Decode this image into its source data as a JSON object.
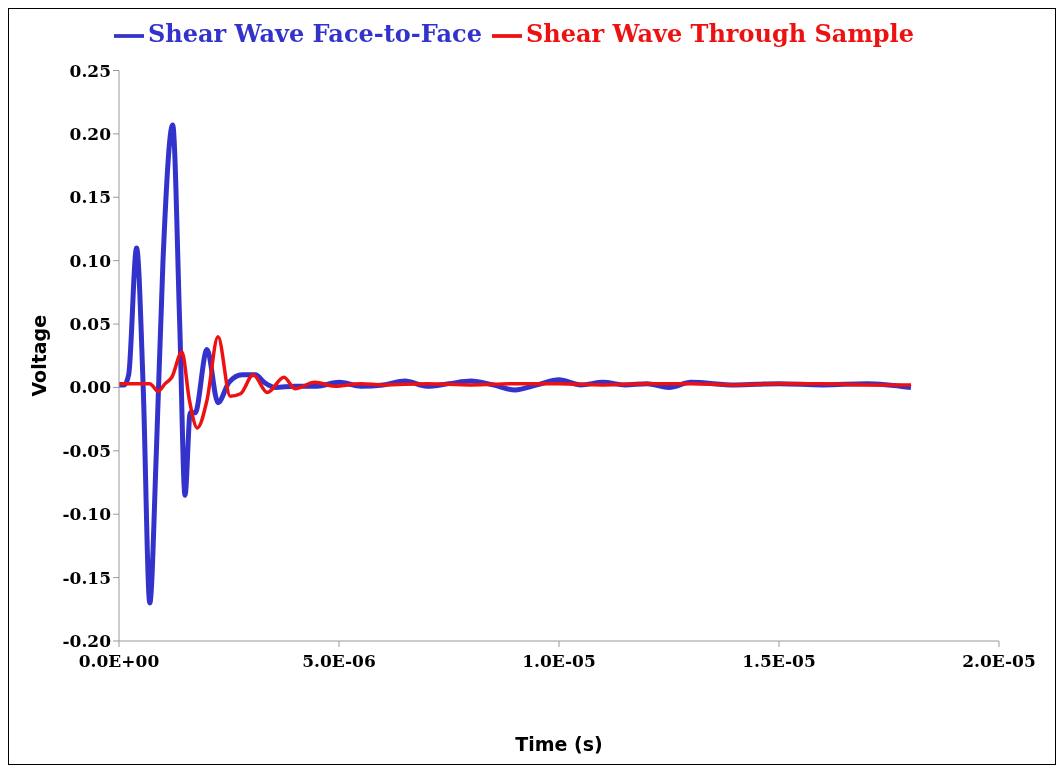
{
  "chart_data": {
    "type": "line",
    "xlabel": "Time (s)",
    "ylabel": "Voltage",
    "xlim": [
      0,
      2e-05
    ],
    "xticks": [
      {
        "value": 0,
        "label": "0.0E+00"
      },
      {
        "value": 5e-06,
        "label": "5.0E-06"
      },
      {
        "value": 1e-05,
        "label": "1.0E-05"
      },
      {
        "value": 1.5e-05,
        "label": "1.5E-05"
      },
      {
        "value": 2e-05,
        "label": "2.0E-05"
      }
    ],
    "ylim": [
      -0.2,
      0.25
    ],
    "yticks": [
      {
        "value": -0.2,
        "label": "-0.20"
      },
      {
        "value": -0.15,
        "label": "-0.15"
      },
      {
        "value": -0.1,
        "label": "-0.10"
      },
      {
        "value": -0.05,
        "label": "-0.05"
      },
      {
        "value": 0,
        "label": "0.00"
      },
      {
        "value": 0.05,
        "label": "0.05"
      },
      {
        "value": 0.1,
        "label": "0.10"
      },
      {
        "value": 0.15,
        "label": "0.15"
      },
      {
        "value": 0.2,
        "label": "0.20"
      },
      {
        "value": 0.25,
        "label": "0.25"
      }
    ],
    "grid": false,
    "legend": "top",
    "marker": "none",
    "line_style": "solid",
    "series": [
      {
        "name": "Shear Wave Face-to-Face",
        "color": "#3333cc",
        "x": [
          0,
          1.2e-07,
          2.2e-07,
          4e-07,
          5.5e-07,
          7e-07,
          8.5e-07,
          1e-06,
          1.22e-06,
          1.38e-06,
          1.5e-06,
          1.62e-06,
          1.73e-06,
          2e-06,
          2.25e-06,
          2.5e-06,
          2.8e-06,
          3.1e-06,
          3.3e-06,
          3.55e-06,
          4e-06,
          4.5e-06,
          5e-06,
          5.5e-06,
          6e-06,
          6.5e-06,
          7e-06,
          7.5e-06,
          8e-06,
          8.5e-06,
          9e-06,
          9.5e-06,
          1e-05,
          1.05e-05,
          1.1e-05,
          1.15e-05,
          1.2e-05,
          1.25e-05,
          1.3e-05,
          1.4e-05,
          1.5e-05,
          1.6e-05,
          1.7e-05,
          1.8e-05
        ],
        "values": [
          0.002,
          0.002,
          0.01,
          0.11,
          0.0,
          -0.17,
          -0.05,
          0.1,
          0.207,
          0.05,
          -0.085,
          -0.02,
          -0.02,
          0.03,
          -0.012,
          0.004,
          0.01,
          0.01,
          0.004,
          0.0,
          0.001,
          0.001,
          0.004,
          0.001,
          0.002,
          0.005,
          0.001,
          0.003,
          0.005,
          0.002,
          -0.002,
          0.002,
          0.006,
          0.002,
          0.004,
          0.002,
          0.003,
          0.0,
          0.004,
          0.002,
          0.003,
          0.002,
          0.003,
          0.0
        ]
      },
      {
        "name": "Shear Wave Through Sample",
        "color": "#ee1111",
        "x": [
          0,
          4e-07,
          7e-07,
          8.9e-07,
          1.05e-06,
          1.2e-06,
          1.43e-06,
          1.6e-06,
          1.78e-06,
          2e-06,
          2.25e-06,
          2.53e-06,
          2.76e-06,
          3.05e-06,
          3.37e-06,
          3.75e-06,
          4e-06,
          4.45e-06,
          4.9e-06,
          5.5e-06,
          6e-06,
          7e-06,
          8e-06,
          9e-06,
          1e-05,
          1.1e-05,
          1.2e-05,
          1.3e-05,
          1.4e-05,
          1.5e-05,
          1.6e-05,
          1.7e-05,
          1.8e-05
        ],
        "values": [
          0.003,
          0.003,
          0.003,
          -0.003,
          0.003,
          0.008,
          0.028,
          -0.01,
          -0.032,
          -0.01,
          0.04,
          -0.007,
          -0.005,
          0.01,
          -0.004,
          0.008,
          -0.001,
          0.004,
          0.001,
          0.003,
          0.002,
          0.003,
          0.002,
          0.003,
          0.003,
          0.002,
          0.003,
          0.003,
          0.002,
          0.003,
          0.003,
          0.002,
          0.002
        ]
      }
    ]
  }
}
